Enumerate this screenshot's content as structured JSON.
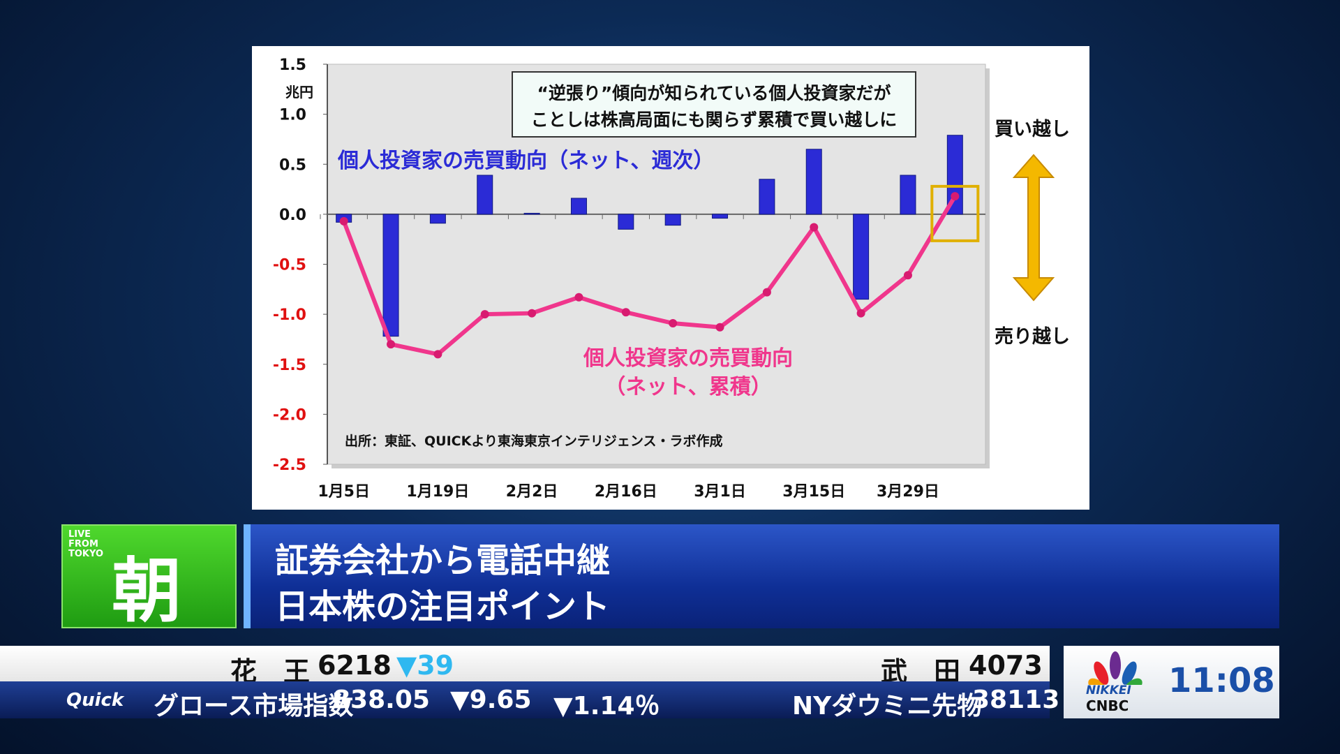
{
  "chart_data": {
    "type": "bar+line",
    "unit_label": "兆円",
    "ylim": [
      -2.5,
      1.5
    ],
    "yticks": [
      "1.5",
      "1.0",
      "0.5",
      "0.0",
      "-0.5",
      "-1.0",
      "-1.5",
      "-2.0",
      "-2.5"
    ],
    "x_tick_labels": [
      "1月5日",
      "1月19日",
      "2月2日",
      "2月16日",
      "3月1日",
      "3月15日",
      "3月29日"
    ],
    "series": [
      {
        "name": "個人投資家の売買動向（ネット、週次）",
        "type": "bar",
        "color": "#2b2bd6",
        "values": [
          -0.08,
          -1.22,
          -0.09,
          0.39,
          0.01,
          0.16,
          -0.15,
          -0.11,
          -0.04,
          0.35,
          0.65,
          -0.85,
          0.39,
          0.79
        ]
      },
      {
        "name": "個人投資家の売買動向",
        "name_line2": "（ネット、累積）",
        "type": "line",
        "color": "#f0368c",
        "values": [
          -0.07,
          -1.3,
          -1.4,
          -1.0,
          -0.99,
          -0.83,
          -0.98,
          -1.09,
          -1.13,
          -0.78,
          -0.13,
          -0.99,
          -0.61,
          0.18
        ]
      }
    ],
    "annotation_line1": "“逆張り”傾向が知られている個人投資家だが",
    "annotation_line2": "ことしは株高局面にも関らず累積で買い越しに",
    "source": "出所：東証、QUICKより東海東京インテリジェンス・ラボ作成",
    "buy_label": "買い越し",
    "sell_label": "売り越し"
  },
  "banner": {
    "live": [
      "LIVE",
      "FROM",
      "TOKYO"
    ],
    "program": "朝",
    "line1": "証券会社から電話中継",
    "line2": "日本株の注目ポイント"
  },
  "ticker": {
    "stock1": {
      "name": "花　王",
      "price": "6218",
      "change": "▼39"
    },
    "stock2": {
      "name": "武　田",
      "price": "4073"
    },
    "brand": "Quick",
    "index1": {
      "name": "グロース市場指数",
      "value": "838.05",
      "change": "▼9.65",
      "pct": "▼1.14％"
    },
    "index2": {
      "name": "NYダウミニ先物",
      "value": "38113"
    }
  },
  "logo": {
    "nikkei": "NIKKEI",
    "cnbc": "CNBC",
    "time": "11:08"
  }
}
